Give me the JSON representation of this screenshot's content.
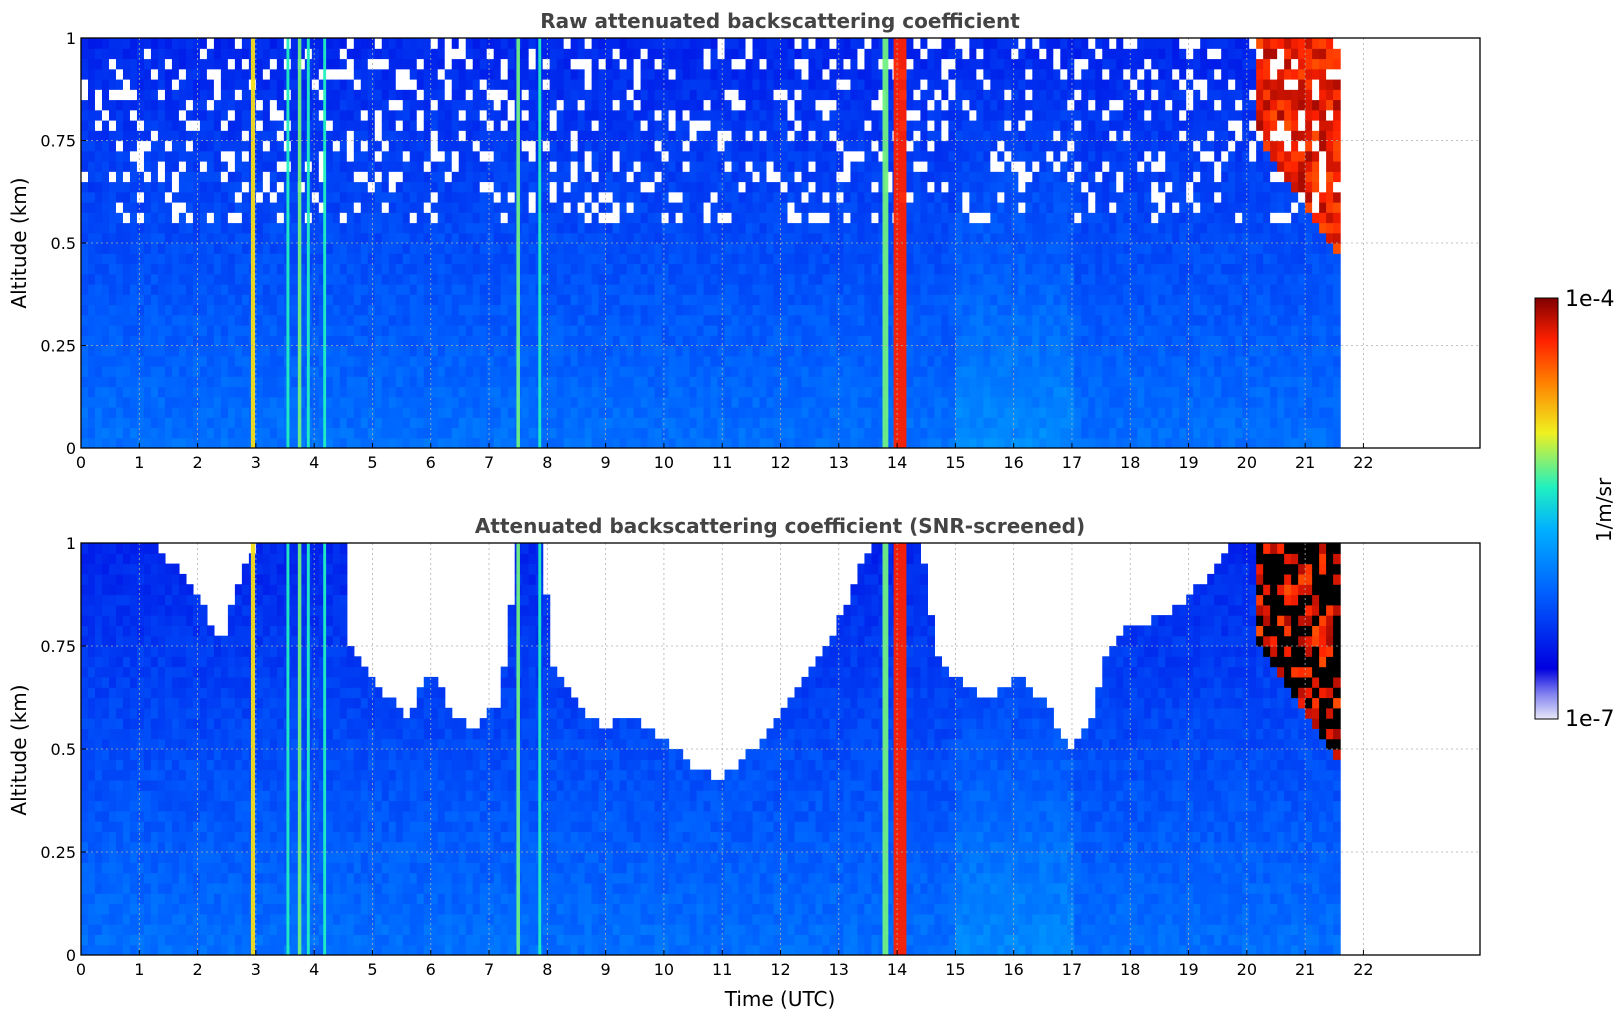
{
  "chart_data": [
    {
      "type": "heatmap",
      "title": "Raw attenuated backscattering coefficient",
      "xlabel": "",
      "ylabel": "Altitude (km)",
      "xlim": [
        0,
        24
      ],
      "ylim": [
        0,
        1
      ],
      "x_ticks": [
        0,
        1,
        2,
        3,
        4,
        5,
        6,
        7,
        8,
        9,
        10,
        11,
        12,
        13,
        14,
        15,
        16,
        17,
        18,
        19,
        20,
        21,
        22
      ],
      "y_ticks": [
        "0",
        "0.25",
        "0.5",
        "0.75",
        "1"
      ],
      "grid": true,
      "data_end_time": 21.6,
      "screened": false,
      "features": [
        {
          "type": "vertical_streak",
          "time": 2.95,
          "width": 0.07,
          "level": 0.7
        },
        {
          "type": "vertical_streak",
          "time": 3.55,
          "width": 0.05,
          "level": 0.55
        },
        {
          "type": "vertical_streak",
          "time": 3.75,
          "width": 0.06,
          "level": 0.6
        },
        {
          "type": "vertical_streak",
          "time": 3.9,
          "width": 0.05,
          "level": 0.55
        },
        {
          "type": "vertical_streak",
          "time": 4.18,
          "width": 0.05,
          "level": 0.55
        },
        {
          "type": "vertical_streak",
          "time": 7.5,
          "width": 0.06,
          "level": 0.6
        },
        {
          "type": "vertical_streak",
          "time": 7.87,
          "width": 0.05,
          "level": 0.55
        },
        {
          "type": "vertical_streak",
          "time": 13.8,
          "width": 0.1,
          "level": 0.6
        },
        {
          "type": "vertical_streak",
          "time": 14.05,
          "width": 0.22,
          "level": 0.9
        },
        {
          "type": "cloud_layer",
          "time_start": 20.2,
          "time_end": 21.6,
          "alt_top": 1.0,
          "alt_bottom_start": 0.75,
          "alt_bottom_end": 0.45,
          "level": 0.97
        }
      ]
    },
    {
      "type": "heatmap",
      "title": "Attenuated backscattering coefficient (SNR-screened)",
      "xlabel": "Time (UTC)",
      "ylabel": "Altitude (km)",
      "xlim": [
        0,
        24
      ],
      "ylim": [
        0,
        1
      ],
      "x_ticks": [
        0,
        1,
        2,
        3,
        4,
        5,
        6,
        7,
        8,
        9,
        10,
        11,
        12,
        13,
        14,
        15,
        16,
        17,
        18,
        19,
        20,
        21,
        22
      ],
      "y_ticks": [
        "0",
        "0.25",
        "0.5",
        "0.75",
        "1"
      ],
      "grid": true,
      "data_end_time": 21.6,
      "screened": true,
      "screen_boundary": [
        [
          0,
          1.0
        ],
        [
          1.3,
          1.0
        ],
        [
          2.1,
          0.85
        ],
        [
          2.4,
          0.75
        ],
        [
          2.8,
          0.95
        ],
        [
          3.0,
          1.0
        ],
        [
          4.5,
          1.0
        ],
        [
          4.6,
          0.75
        ],
        [
          5.1,
          0.65
        ],
        [
          5.6,
          0.58
        ],
        [
          6.0,
          0.7
        ],
        [
          6.3,
          0.6
        ],
        [
          6.7,
          0.55
        ],
        [
          7.2,
          0.62
        ],
        [
          7.5,
          1.0
        ],
        [
          7.9,
          1.0
        ],
        [
          8.1,
          0.7
        ],
        [
          8.6,
          0.6
        ],
        [
          9.0,
          0.55
        ],
        [
          9.4,
          0.58
        ],
        [
          9.8,
          0.55
        ],
        [
          10.2,
          0.5
        ],
        [
          10.6,
          0.45
        ],
        [
          11.0,
          0.43
        ],
        [
          11.4,
          0.48
        ],
        [
          11.8,
          0.55
        ],
        [
          12.1,
          0.6
        ],
        [
          12.5,
          0.7
        ],
        [
          12.9,
          0.78
        ],
        [
          13.4,
          0.95
        ],
        [
          13.6,
          1.0
        ],
        [
          14.4,
          1.0
        ],
        [
          14.7,
          0.72
        ],
        [
          15.2,
          0.65
        ],
        [
          15.6,
          0.62
        ],
        [
          16.1,
          0.68
        ],
        [
          16.6,
          0.6
        ],
        [
          16.95,
          0.5
        ],
        [
          17.3,
          0.55
        ],
        [
          17.6,
          0.75
        ],
        [
          18.0,
          0.8
        ],
        [
          18.6,
          0.82
        ],
        [
          19.2,
          0.9
        ],
        [
          19.7,
          1.0
        ],
        [
          21.6,
          1.0
        ]
      ],
      "features": [
        {
          "type": "vertical_streak",
          "time": 2.95,
          "width": 0.07,
          "level": 0.7
        },
        {
          "type": "vertical_streak",
          "time": 3.55,
          "width": 0.05,
          "level": 0.55
        },
        {
          "type": "vertical_streak",
          "time": 3.75,
          "width": 0.06,
          "level": 0.6
        },
        {
          "type": "vertical_streak",
          "time": 3.9,
          "width": 0.05,
          "level": 0.55
        },
        {
          "type": "vertical_streak",
          "time": 4.18,
          "width": 0.05,
          "level": 0.55
        },
        {
          "type": "vertical_streak",
          "time": 7.5,
          "width": 0.06,
          "level": 0.6
        },
        {
          "type": "vertical_streak",
          "time": 7.87,
          "width": 0.05,
          "level": 0.55
        },
        {
          "type": "vertical_streak",
          "time": 13.8,
          "width": 0.1,
          "level": 0.6
        },
        {
          "type": "vertical_streak",
          "time": 14.05,
          "width": 0.22,
          "level": 0.9
        },
        {
          "type": "cloud_layer",
          "time_start": 20.2,
          "time_end": 21.6,
          "alt_top": 1.0,
          "alt_bottom_start": 0.75,
          "alt_bottom_end": 0.45,
          "level": 0.97,
          "saturated_color": "#000000"
        }
      ]
    }
  ],
  "colorbar": {
    "label": "1/m/sr",
    "max_label": "1e-4",
    "min_label": "1e-7",
    "scale": "log",
    "colormap": [
      "#e8e8f8",
      "#0000e0",
      "#0060ff",
      "#00c0ff",
      "#20f0c0",
      "#f0f020",
      "#ff8000",
      "#ff2000",
      "#800000"
    ]
  }
}
